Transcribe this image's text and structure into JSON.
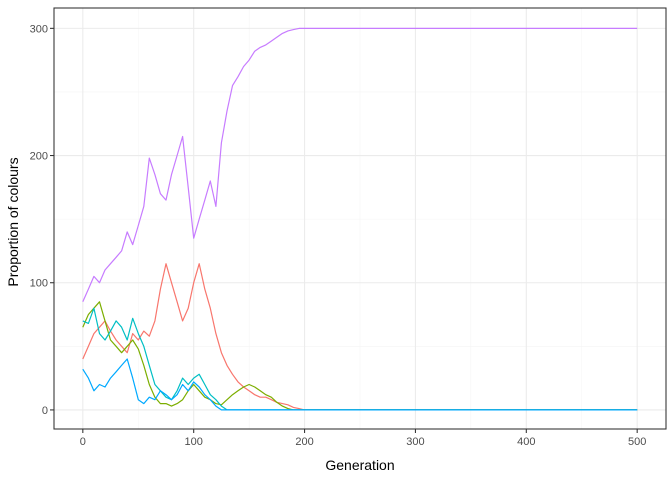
{
  "chart_data": {
    "type": "line",
    "title": "",
    "xlabel": "Generation",
    "ylabel": "Proportion of colours",
    "xlim": [
      -26,
      526
    ],
    "ylim": [
      -15,
      316
    ],
    "x_ticks": [
      0,
      100,
      200,
      300,
      400,
      500
    ],
    "y_ticks": [
      0,
      100,
      200,
      300
    ],
    "x_tick_labels": [
      "0",
      "100",
      "200",
      "300",
      "400",
      "500"
    ],
    "y_tick_labels": [
      "0",
      "100",
      "200",
      "300"
    ],
    "grid": true,
    "legend": "none",
    "series": [
      {
        "color": "#F8766D",
        "x": [
          0,
          5,
          10,
          15,
          20,
          25,
          30,
          35,
          40,
          45,
          50,
          55,
          60,
          65,
          70,
          75,
          80,
          85,
          90,
          95,
          100,
          105,
          110,
          115,
          120,
          125,
          130,
          135,
          140,
          145,
          150,
          155,
          160,
          165,
          170,
          175,
          180,
          185,
          190,
          195,
          200,
          500
        ],
        "y": [
          40,
          50,
          60,
          65,
          70,
          62,
          55,
          50,
          45,
          60,
          55,
          62,
          58,
          70,
          95,
          115,
          100,
          85,
          70,
          80,
          100,
          115,
          95,
          80,
          60,
          45,
          35,
          28,
          22,
          18,
          15,
          12,
          10,
          10,
          8,
          6,
          5,
          4,
          2,
          1,
          0,
          0
        ]
      },
      {
        "color": "#7CAE00",
        "x": [
          0,
          5,
          10,
          15,
          20,
          25,
          30,
          35,
          40,
          45,
          50,
          55,
          60,
          65,
          70,
          75,
          80,
          85,
          90,
          95,
          100,
          105,
          110,
          115,
          120,
          125,
          130,
          135,
          140,
          145,
          150,
          155,
          160,
          165,
          170,
          175,
          180,
          185,
          190,
          500
        ],
        "y": [
          65,
          75,
          80,
          85,
          70,
          55,
          50,
          45,
          50,
          55,
          48,
          35,
          20,
          10,
          5,
          5,
          3,
          5,
          8,
          15,
          20,
          15,
          10,
          8,
          5,
          4,
          8,
          12,
          15,
          18,
          20,
          18,
          15,
          12,
          10,
          6,
          3,
          1,
          0,
          0
        ]
      },
      {
        "color": "#00BFC4",
        "x": [
          0,
          5,
          10,
          15,
          20,
          25,
          30,
          35,
          40,
          45,
          50,
          55,
          60,
          65,
          70,
          75,
          80,
          85,
          90,
          95,
          100,
          105,
          110,
          115,
          120,
          125,
          130,
          500
        ],
        "y": [
          70,
          68,
          80,
          60,
          55,
          62,
          70,
          65,
          55,
          72,
          60,
          50,
          35,
          20,
          15,
          10,
          8,
          15,
          25,
          20,
          25,
          28,
          20,
          12,
          8,
          3,
          0,
          0
        ]
      },
      {
        "color": "#C77CFF",
        "x": [
          0,
          5,
          10,
          15,
          20,
          25,
          30,
          35,
          40,
          45,
          50,
          55,
          60,
          65,
          70,
          75,
          80,
          85,
          90,
          95,
          100,
          105,
          110,
          115,
          120,
          125,
          130,
          135,
          140,
          145,
          150,
          155,
          160,
          165,
          170,
          175,
          180,
          185,
          190,
          195,
          500
        ],
        "y": [
          85,
          95,
          105,
          100,
          110,
          115,
          120,
          125,
          140,
          130,
          145,
          160,
          198,
          185,
          170,
          165,
          185,
          200,
          215,
          175,
          135,
          150,
          165,
          180,
          160,
          210,
          235,
          255,
          262,
          270,
          275,
          282,
          285,
          287,
          290,
          293,
          296,
          298,
          299,
          300,
          300
        ]
      },
      {
        "color": "#00A9FF",
        "x": [
          0,
          5,
          10,
          15,
          20,
          25,
          30,
          35,
          40,
          45,
          50,
          55,
          60,
          65,
          70,
          75,
          80,
          85,
          90,
          95,
          100,
          105,
          110,
          115,
          120,
          125,
          500
        ],
        "y": [
          32,
          25,
          15,
          20,
          18,
          25,
          30,
          35,
          40,
          25,
          8,
          5,
          10,
          8,
          15,
          12,
          8,
          12,
          20,
          15,
          22,
          18,
          12,
          8,
          3,
          0,
          0
        ]
      }
    ]
  }
}
